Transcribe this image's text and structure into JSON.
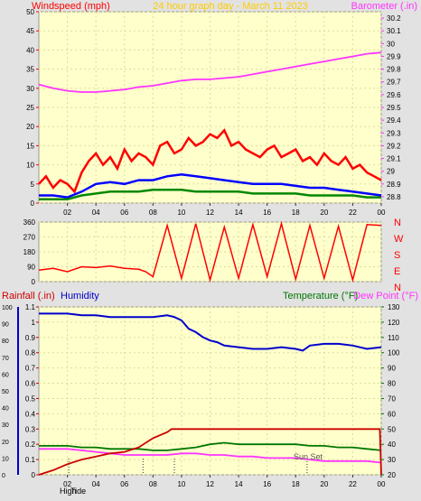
{
  "chart_data": [
    {
      "type": "line",
      "title": "24 hour graph day - March 11 2023",
      "ylabel_left": "Windspeed (mph)",
      "ylabel_right": "Barometer (.in)",
      "y_left_ticks": [
        "0",
        "5",
        "10",
        "15",
        "20",
        "25",
        "30",
        "35",
        "40",
        "45",
        "50"
      ],
      "y_right_ticks": [
        "28.8",
        "28.9",
        "29",
        "29.1",
        "29.2",
        "29.3",
        "29.4",
        "29.5",
        "29.6",
        "29.7",
        "29.8",
        "29.9",
        "30",
        "30.1",
        "30.2"
      ],
      "x_ticks": [
        "02",
        "04",
        "06",
        "08",
        "10",
        "12",
        "14",
        "16",
        "18",
        "20",
        "22",
        "00"
      ],
      "ylim_left": [
        0,
        50
      ],
      "ylim_right": [
        28.75,
        30.25
      ],
      "xlim_hours": [
        0,
        24
      ],
      "series": [
        {
          "axis": "right",
          "color": "#ff33ff",
          "x": [
            0,
            1,
            2,
            3,
            4,
            5,
            6,
            7,
            8,
            9,
            10,
            11,
            12,
            13,
            14,
            15,
            16,
            17,
            18,
            19,
            20,
            21,
            22,
            23,
            24
          ],
          "values": [
            29.68,
            29.65,
            29.63,
            29.62,
            29.62,
            29.63,
            29.64,
            29.66,
            29.67,
            29.69,
            29.71,
            29.72,
            29.72,
            29.73,
            29.74,
            29.76,
            29.78,
            29.8,
            29.82,
            29.84,
            29.86,
            29.88,
            29.9,
            29.92,
            29.93
          ]
        },
        {
          "axis": "left",
          "color": "#ff0000",
          "name_hint": "gust",
          "x": [
            0,
            0.5,
            1,
            1.5,
            2,
            2.5,
            3,
            3.5,
            4,
            4.5,
            5,
            5.5,
            6,
            6.5,
            7,
            7.5,
            8,
            8.5,
            9,
            9.5,
            10,
            10.5,
            11,
            11.5,
            12,
            12.5,
            13,
            13.5,
            14,
            14.5,
            15,
            15.5,
            16,
            16.5,
            17,
            17.5,
            18,
            18.5,
            19,
            19.5,
            20,
            20.5,
            21,
            21.5,
            22,
            22.5,
            23,
            23.5,
            24
          ],
          "values": [
            5,
            7,
            4,
            6,
            5,
            3,
            8,
            11,
            13,
            10,
            12,
            9,
            14,
            11,
            13,
            12,
            10,
            15,
            16,
            13,
            14,
            17,
            15,
            16,
            18,
            17,
            19,
            15,
            16,
            14,
            13,
            12,
            14,
            15,
            12,
            13,
            14,
            11,
            12,
            10,
            13,
            11,
            10,
            12,
            9,
            10,
            8,
            7,
            6
          ]
        },
        {
          "axis": "left",
          "color": "#0000ff",
          "name_hint": "average",
          "x": [
            0,
            1,
            2,
            3,
            4,
            5,
            6,
            7,
            8,
            9,
            10,
            11,
            12,
            13,
            14,
            15,
            16,
            17,
            18,
            19,
            20,
            21,
            22,
            23,
            24
          ],
          "values": [
            2,
            2,
            1.5,
            3,
            5,
            5.5,
            5,
            6,
            6,
            7,
            7.5,
            7,
            6.5,
            6,
            5.5,
            5,
            5,
            5,
            4.5,
            4,
            4,
            3.5,
            3,
            2.5,
            2
          ]
        },
        {
          "axis": "left",
          "color": "#008800",
          "name_hint": "speed",
          "x": [
            0,
            1,
            2,
            3,
            4,
            5,
            6,
            7,
            8,
            9,
            10,
            11,
            12,
            13,
            14,
            15,
            16,
            17,
            18,
            19,
            20,
            21,
            22,
            23,
            24
          ],
          "values": [
            1,
            1,
            1,
            2,
            2.5,
            3,
            3,
            3,
            3.5,
            3.5,
            3.5,
            3,
            3,
            3,
            3,
            2.5,
            2.5,
            2.5,
            2.5,
            2,
            2,
            2,
            2,
            1.5,
            1.5
          ]
        }
      ]
    },
    {
      "type": "line",
      "ylabel_right_letters": [
        "N",
        "W",
        "S",
        "E",
        "N"
      ],
      "y_ticks": [
        "0",
        "90",
        "180",
        "270",
        "360"
      ],
      "ylim": [
        0,
        360
      ],
      "xlim_hours": [
        0,
        24
      ],
      "series": [
        {
          "color": "#ff0000",
          "name_hint": "wind direction",
          "x": [
            0,
            1,
            2,
            3,
            4,
            5,
            6,
            7,
            7.5,
            8,
            9,
            10,
            11,
            12,
            13,
            14,
            15,
            16,
            17,
            18,
            19,
            20,
            21,
            22,
            23,
            24
          ],
          "values": [
            70,
            80,
            60,
            90,
            85,
            95,
            80,
            75,
            60,
            30,
            340,
            20,
            350,
            10,
            330,
            20,
            345,
            30,
            350,
            15,
            340,
            20,
            335,
            10,
            345,
            340
          ]
        }
      ]
    },
    {
      "type": "line",
      "ylabel_left": "Rainfall (.in)",
      "ylabel_left2": "Humidity",
      "ylabel_right": "Temperature (°F)",
      "ylabel_right2": "Dew Point (°F)",
      "y_left_ticks": [
        "0",
        "0.1",
        "0.2",
        "0.3",
        "0.4",
        "0.5",
        "0.6",
        "0.7",
        "0.8",
        "0.9",
        "1",
        "1.1"
      ],
      "y_left2_ticks": [
        "0",
        "10",
        "20",
        "30",
        "40",
        "50",
        "60",
        "70",
        "80",
        "90",
        "100"
      ],
      "y_right_ticks": [
        "20",
        "30",
        "40",
        "50",
        "60",
        "70",
        "80",
        "90",
        "100",
        "110",
        "120",
        "130"
      ],
      "x_ticks": [
        "02",
        "04",
        "06",
        "08",
        "10",
        "12",
        "14",
        "16",
        "18",
        "20",
        "22",
        "00"
      ],
      "annotations": [
        "High",
        "Tide",
        "Sun Set"
      ],
      "ylim_humidity": [
        0,
        100
      ],
      "ylim_rain": [
        0,
        1.1
      ],
      "ylim_temp": [
        20,
        130
      ],
      "xlim_hours": [
        0,
        24
      ],
      "series": [
        {
          "color": "#0000cc",
          "axis": "humidity",
          "x": [
            0,
            1,
            2,
            3,
            4,
            5,
            6,
            7,
            8,
            9,
            9.5,
            10,
            10.5,
            11,
            11.5,
            12,
            12.5,
            13,
            14,
            15,
            16,
            17,
            18,
            18.5,
            19,
            20,
            21,
            22,
            23,
            24
          ],
          "values": [
            96,
            96,
            96,
            95,
            95,
            94,
            94,
            94,
            94,
            95,
            94,
            92,
            87,
            85,
            82,
            80,
            79,
            77,
            76,
            75,
            75,
            76,
            75,
            74,
            77,
            78,
            78,
            77,
            75,
            76
          ]
        },
        {
          "color": "#cc0000",
          "axis": "rain",
          "x": [
            0,
            1,
            2,
            3,
            4,
            5,
            6,
            7,
            8,
            9,
            9.3,
            10,
            11,
            12,
            13,
            14,
            15,
            16,
            17,
            18,
            19,
            20,
            21,
            22,
            23,
            23.9,
            24
          ],
          "values": [
            0,
            0.03,
            0.07,
            0.1,
            0.12,
            0.14,
            0.15,
            0.18,
            0.24,
            0.28,
            0.3,
            0.3,
            0.3,
            0.3,
            0.3,
            0.3,
            0.3,
            0.3,
            0.3,
            0.3,
            0.3,
            0.3,
            0.3,
            0.3,
            0.3,
            0.3,
            0
          ]
        },
        {
          "color": "#007700",
          "axis": "temp",
          "x": [
            0,
            1,
            2,
            3,
            4,
            5,
            6,
            7,
            8,
            9,
            10,
            11,
            12,
            13,
            14,
            15,
            16,
            17,
            18,
            19,
            20,
            21,
            22,
            23,
            24
          ],
          "values": [
            39,
            39,
            39,
            38,
            38,
            37,
            37,
            37,
            36,
            36,
            37,
            38,
            40,
            41,
            40,
            40,
            40,
            40,
            40,
            39,
            39,
            38,
            38,
            37,
            36
          ]
        },
        {
          "color": "#ff33ff",
          "axis": "temp",
          "x": [
            0,
            1,
            2,
            3,
            4,
            5,
            6,
            7,
            8,
            9,
            10,
            11,
            12,
            13,
            14,
            15,
            16,
            17,
            18,
            19,
            20,
            21,
            22,
            23,
            24
          ],
          "values": [
            37,
            37,
            37,
            36,
            35,
            34,
            33,
            33,
            33,
            33,
            34,
            34,
            33,
            33,
            32,
            32,
            31,
            31,
            31,
            30,
            29,
            29,
            29,
            29,
            28
          ]
        }
      ]
    }
  ]
}
